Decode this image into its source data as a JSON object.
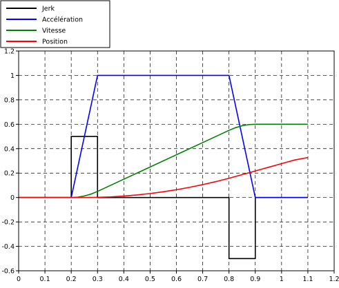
{
  "colors": {
    "jerk": "#000000",
    "acceleration": "#0000ff",
    "vitesse": "#008000",
    "position": "#ff0000",
    "grid": "#000000",
    "frame": "#000000"
  },
  "chart_data": {
    "type": "line",
    "xlim": [
      0,
      1.2
    ],
    "ylim": [
      -0.6,
      1.2
    ],
    "x_ticks": [
      0,
      0.1,
      0.2,
      0.3,
      0.4,
      0.5,
      0.6,
      0.7,
      0.8,
      0.9,
      1,
      1.1,
      1.2
    ],
    "y_ticks": [
      -0.6,
      -0.4,
      -0.2,
      0,
      0.2,
      0.4,
      0.6,
      0.8,
      1,
      1.2
    ],
    "x_tick_labels": [
      "0",
      "0.1",
      "0.2",
      "0.3",
      "0.4",
      "0.5",
      "0.6",
      "0.7",
      "0.8",
      "0.9",
      "1",
      "1.1",
      "1.2"
    ],
    "y_tick_labels": [
      "-0.6",
      "-0.4",
      "-0.2",
      "0",
      "0.2",
      "0.4",
      "0.6",
      "0.8",
      "1",
      "1.2"
    ],
    "grid": true,
    "grid_style": "dashed",
    "legend_position": "top-left",
    "series": [
      {
        "name": "Jerk",
        "color_key": "jerk",
        "x": [
          0,
          0.2,
          0.2,
          0.3,
          0.3,
          0.8,
          0.8,
          0.9,
          0.9,
          1.1
        ],
        "y": [
          0,
          0,
          0.5,
          0.5,
          0,
          0,
          -0.5,
          -0.5,
          0,
          0
        ]
      },
      {
        "name": "Accélération",
        "color_key": "acceleration",
        "x": [
          0,
          0.2,
          0.3,
          0.8,
          0.9,
          1.1
        ],
        "y": [
          0,
          0,
          1,
          1,
          0,
          0
        ]
      },
      {
        "name": "Vitesse",
        "color_key": "vitesse",
        "x": [
          0,
          0.2,
          0.225,
          0.25,
          0.275,
          0.3,
          0.4,
          0.5,
          0.6,
          0.7,
          0.8,
          0.825,
          0.85,
          0.875,
          0.9,
          1.0,
          1.1
        ],
        "y": [
          0,
          0,
          0.003,
          0.0125,
          0.028,
          0.05,
          0.15,
          0.25,
          0.35,
          0.45,
          0.55,
          0.572,
          0.588,
          0.597,
          0.6,
          0.6,
          0.6
        ]
      },
      {
        "name": "Position",
        "color_key": "position",
        "x": [
          0,
          0.2,
          0.25,
          0.3,
          0.35,
          0.4,
          0.45,
          0.5,
          0.55,
          0.6,
          0.65,
          0.7,
          0.75,
          0.8,
          0.85,
          0.9,
          0.95,
          1.0,
          1.05,
          1.1
        ],
        "y": [
          0,
          0,
          0.0002,
          0.0017,
          0.0051,
          0.0117,
          0.0209,
          0.0326,
          0.0469,
          0.0638,
          0.0833,
          0.1055,
          0.1302,
          0.1575,
          0.1874,
          0.2175,
          0.2475,
          0.2775,
          0.3075,
          0.3275
        ]
      }
    ]
  }
}
